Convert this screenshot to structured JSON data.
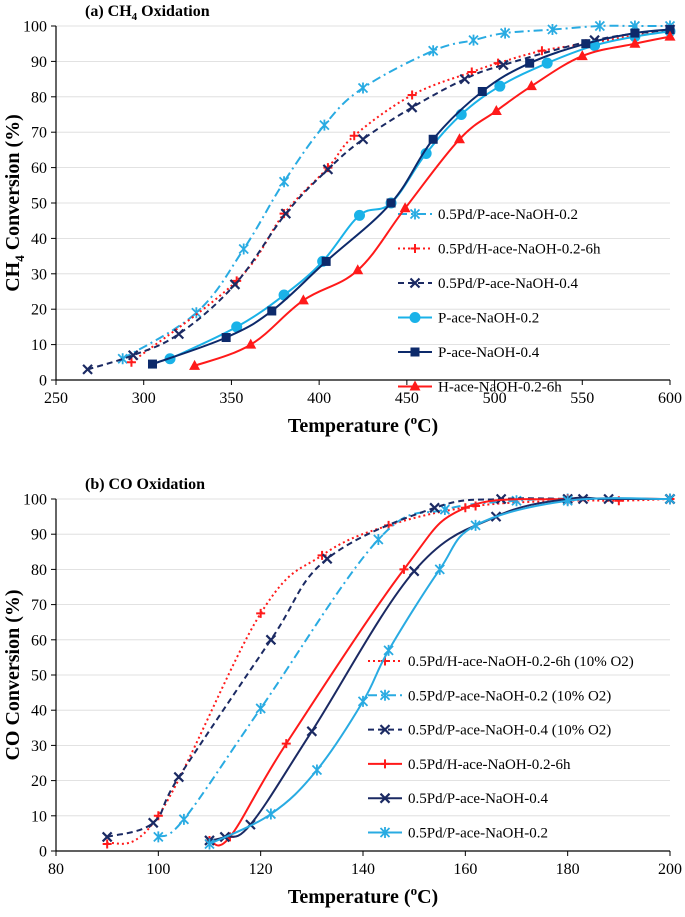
{
  "chart_data": [
    {
      "type": "line",
      "title_prefix": "(a) CH",
      "title_sub": "4",
      "title_suffix": " Oxidation",
      "xlabel": "Temperature (",
      "xlabel_sup": "o",
      "xlabel_suffix": "C)",
      "ylabel_prefix": "CH",
      "ylabel_sub": "4",
      "ylabel_suffix": " Conversion (%)",
      "xlim": [
        250,
        600
      ],
      "ylim": [
        0,
        100
      ],
      "xticks": [
        250,
        300,
        350,
        400,
        450,
        500,
        550,
        600
      ],
      "yticks": [
        0,
        10,
        20,
        30,
        40,
        50,
        60,
        70,
        80,
        90,
        100
      ],
      "grid": "horizontal",
      "legend_position": "right",
      "series": [
        {
          "name": "0.5Pd/P-ace-NaOH-0.2",
          "color": "#29ABE2",
          "dash": "dashdot",
          "marker": "asterisk",
          "x": [
            288,
            330,
            357,
            380,
            403,
            425,
            465,
            488,
            506,
            533,
            560,
            580,
            600
          ],
          "y": [
            6,
            19,
            37,
            56,
            72,
            82.5,
            93,
            96,
            98,
            99,
            100,
            100,
            100
          ]
        },
        {
          "name": "0.5Pd/H-ace-NaOH-0.2-6h",
          "color": "#FF1A1A",
          "dash": "dot",
          "marker": "plus",
          "x": [
            293,
            353,
            380,
            405,
            420,
            453,
            487,
            502,
            527,
            552,
            600
          ],
          "y": [
            5,
            28,
            47,
            60,
            69,
            80.5,
            87,
            89.5,
            93,
            95,
            99
          ]
        },
        {
          "name": "0.5Pd/P-ace-NaOH-0.4",
          "color": "#1B2A63",
          "dash": "dash",
          "marker": "x",
          "x": [
            268,
            294,
            320,
            352,
            381,
            405,
            425,
            453,
            483,
            505,
            557,
            600
          ],
          "y": [
            3,
            7,
            13,
            27,
            47,
            59.5,
            68,
            77,
            85,
            89,
            96,
            99
          ]
        },
        {
          "name": "P-ace-NaOH-0.2",
          "color": "#1AB2E8",
          "dash": "solid",
          "marker": "circle",
          "x": [
            315,
            353,
            380,
            402,
            423,
            441,
            461,
            481,
            503,
            530,
            557,
            580,
            600
          ],
          "y": [
            6,
            15,
            24,
            33.5,
            46.5,
            50,
            64,
            75,
            83,
            89.5,
            94.5,
            97,
            98.5
          ]
        },
        {
          "name": "P-ace-NaOH-0.4",
          "color": "#0D2A6B",
          "dash": "solid",
          "marker": "square",
          "x": [
            305,
            347,
            373,
            404,
            441,
            465,
            493,
            520,
            552,
            580,
            600
          ],
          "y": [
            4.5,
            12,
            19.5,
            33.5,
            50,
            68,
            81.5,
            89.5,
            95,
            98,
            99
          ]
        },
        {
          "name": "H-ace-NaOH-0.2-6h",
          "color": "#FF1A1A",
          "dash": "solid",
          "marker": "triangle",
          "x": [
            329,
            361,
            391,
            422,
            449,
            480,
            501,
            521,
            550,
            580,
            600
          ],
          "y": [
            4,
            10,
            22.5,
            31,
            48.5,
            68,
            76,
            83,
            91.5,
            95,
            97
          ]
        }
      ]
    },
    {
      "type": "line",
      "title": "(b) CO Oxidation",
      "xlabel": "Temperature (",
      "xlabel_sup": "o",
      "xlabel_suffix": "C)",
      "ylabel": "CO Conversion (%)",
      "xlim": [
        80,
        200
      ],
      "ylim": [
        0,
        100
      ],
      "xticks": [
        80,
        100,
        120,
        140,
        160,
        180,
        200
      ],
      "yticks": [
        0,
        10,
        20,
        30,
        40,
        50,
        60,
        70,
        80,
        90,
        100
      ],
      "grid": "horizontal",
      "legend_position": "right",
      "series": [
        {
          "name": "0.5Pd/H-ace-NaOH-0.2-6h (10% O2)",
          "color": "#FF1A1A",
          "dash": "dot",
          "marker": "plus",
          "x": [
            90,
            100,
            120,
            132,
            145,
            162,
            180,
            190,
            200
          ],
          "y": [
            2,
            10,
            67.5,
            84,
            92.5,
            98,
            99.5,
            99.5,
            100
          ]
        },
        {
          "name": "0.5Pd/P-ace-NaOH-0.2 (10% O2)",
          "color": "#29ABE2",
          "dash": "dashdot",
          "marker": "asterisk",
          "x": [
            100,
            105,
            120,
            143,
            156,
            170,
            180,
            200
          ],
          "y": [
            4,
            9,
            40.5,
            88.5,
            97,
            99.5,
            100,
            100
          ]
        },
        {
          "name": "0.5Pd/P-ace-NaOH-0.4 (10% O2)",
          "color": "#1B2A63",
          "dash": "dash",
          "marker": "x",
          "x": [
            90,
            99,
            104,
            122,
            133,
            154,
            167,
            183,
            200
          ],
          "y": [
            4,
            8,
            21,
            60,
            83,
            97.5,
            100,
            100,
            100
          ]
        },
        {
          "name": "0.5Pd/H-ace-NaOH-0.2-6h",
          "color": "#FF1A1A",
          "dash": "solid",
          "marker": "plus",
          "x": [
            110,
            114,
            125,
            148,
            160,
            180,
            200
          ],
          "y": [
            3,
            4,
            30.5,
            80,
            97.5,
            100,
            100
          ]
        },
        {
          "name": "0.5Pd/P-ace-NaOH-0.4",
          "color": "#1B2A63",
          "dash": "solid",
          "marker": "x",
          "x": [
            110,
            113,
            118,
            130,
            150,
            166,
            180,
            188,
            200
          ],
          "y": [
            3,
            4,
            7.5,
            34,
            79.5,
            95,
            100,
            100,
            100
          ]
        },
        {
          "name": "0.5Pd/P-ace-NaOH-0.2",
          "color": "#29ABE2",
          "dash": "solid",
          "marker": "asterisk",
          "x": [
            110,
            122,
            131,
            140,
            145,
            155,
            162,
            180,
            200
          ],
          "y": [
            2,
            10.5,
            23,
            42.5,
            57,
            80,
            92.5,
            99.5,
            100
          ]
        }
      ]
    }
  ]
}
